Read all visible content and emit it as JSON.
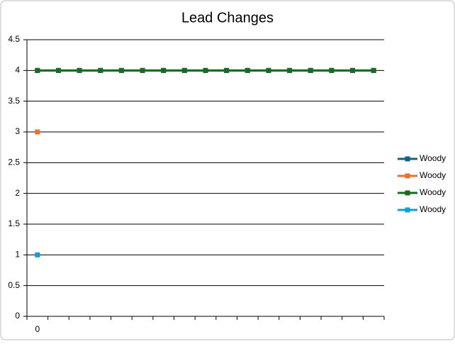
{
  "chart_data": {
    "type": "line",
    "title": "Lead Changes",
    "categories": [
      "0",
      null,
      null,
      null,
      null,
      null,
      null,
      null,
      null,
      null,
      null,
      null,
      null,
      null,
      null,
      null,
      null
    ],
    "series": [
      {
        "name": "Woody",
        "color": "#156082",
        "values": [
          4,
          4,
          4,
          4,
          4,
          4,
          4,
          4,
          4,
          4,
          4,
          4,
          4,
          4,
          4,
          4,
          4
        ]
      },
      {
        "name": "Woody",
        "color": "#e97132",
        "values": [
          3,
          null,
          null,
          null,
          null,
          null,
          null,
          null,
          null,
          null,
          null,
          null,
          null,
          null,
          null,
          null,
          null
        ]
      },
      {
        "name": "Woody",
        "color": "#196b24",
        "values": [
          4,
          4,
          4,
          4,
          4,
          4,
          4,
          4,
          4,
          4,
          4,
          4,
          4,
          4,
          4,
          4,
          4
        ]
      },
      {
        "name": "Woody",
        "color": "#0f9ed5",
        "values": [
          1,
          null,
          null,
          null,
          null,
          null,
          null,
          null,
          null,
          null,
          null,
          null,
          null,
          null,
          null,
          null,
          null
        ]
      }
    ],
    "ylim": [
      0,
      4.5
    ],
    "yticks": [
      0,
      0.5,
      1,
      1.5,
      2,
      2.5,
      3,
      3.5,
      4,
      4.5
    ],
    "grid": true,
    "legend": "right"
  }
}
